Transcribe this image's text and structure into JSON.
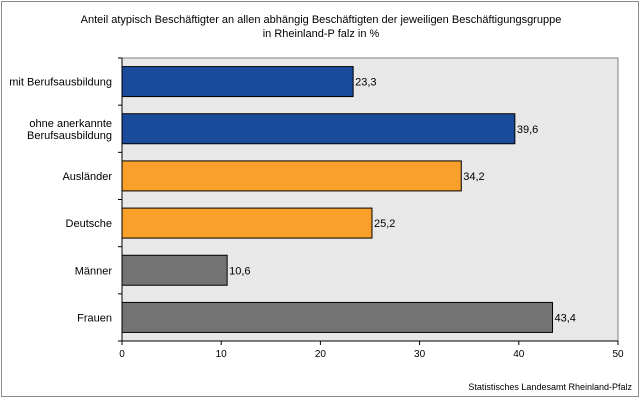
{
  "chart_data": {
    "type": "bar",
    "orientation": "horizontal",
    "title_line1": "Anteil atypisch Beschäftigter an allen abhängig Beschäftigten der jeweiligen Beschäftigungsgruppe",
    "title_line2": "in Rheinland-P falz in %",
    "categories": [
      [
        "mit Berufsausbildung"
      ],
      [
        "ohne anerkannte",
        "Berufsausbildung"
      ],
      [
        "Ausländer"
      ],
      [
        "Deutsche"
      ],
      [
        "Männer"
      ],
      [
        "Frauen"
      ]
    ],
    "values": [
      23.3,
      39.6,
      34.2,
      25.2,
      10.6,
      43.4
    ],
    "value_labels": [
      "23,3",
      "39,6",
      "34,2",
      "25,2",
      "10,6",
      "43,4"
    ],
    "bar_colors": [
      "#1a4a9a",
      "#1a4a9a",
      "#f8a02a",
      "#f8a02a",
      "#737373",
      "#737373"
    ],
    "xlim": [
      0,
      50
    ],
    "xticks": [
      0,
      10,
      20,
      30,
      40,
      50
    ],
    "xtick_labels": [
      "0",
      "10",
      "20",
      "30",
      "40",
      "50"
    ],
    "plot_background": "#e8e8e8",
    "grid": false,
    "legend": "none"
  },
  "source": "Statistisches Landesamt Rheinland-Pfalz"
}
